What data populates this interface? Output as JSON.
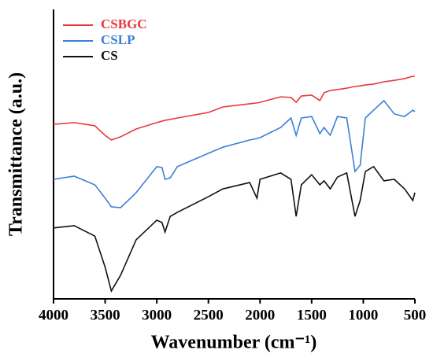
{
  "chart_data": {
    "type": "line",
    "xlabel": "Wavenumber (cm⁻¹)",
    "ylabel": "Transmittance (a.u.)",
    "x": [
      4000,
      3800,
      3600,
      3500,
      3440,
      3350,
      3200,
      3000,
      2950,
      2920,
      2870,
      2800,
      2500,
      2360,
      2100,
      2030,
      2000,
      1800,
      1700,
      1650,
      1600,
      1500,
      1420,
      1380,
      1320,
      1250,
      1160,
      1080,
      1030,
      980,
      900,
      800,
      700,
      600,
      520,
      500
    ],
    "series": [
      {
        "name": "CSBGC",
        "color": "#e8393a",
        "values": [
          60.3,
          60.9,
          59.8,
          56.5,
          54.9,
          56.0,
          58.7,
          60.9,
          61.4,
          61.7,
          62.0,
          62.5,
          64.4,
          66.3,
          67.4,
          67.7,
          67.9,
          69.8,
          69.6,
          67.9,
          70.1,
          70.4,
          68.5,
          71.2,
          72.0,
          72.3,
          72.8,
          73.4,
          73.6,
          73.9,
          74.2,
          75.0,
          75.5,
          76.1,
          76.9,
          76.9
        ]
      },
      {
        "name": "CSLP",
        "color": "#3b7fd8",
        "values": [
          41.3,
          42.4,
          39.4,
          34.8,
          31.8,
          31.5,
          36.7,
          45.7,
          45.4,
          41.3,
          41.8,
          45.7,
          50.3,
          52.4,
          54.9,
          55.4,
          55.7,
          59.2,
          62.5,
          56.5,
          62.5,
          63.0,
          57.1,
          59.2,
          56.5,
          63.0,
          62.5,
          44.0,
          46.2,
          62.5,
          65.2,
          68.5,
          63.9,
          63.0,
          65.2,
          64.7
        ]
      },
      {
        "name": "CS",
        "color": "#111111",
        "values": [
          24.5,
          25.3,
          21.7,
          10.9,
          2.7,
          8.2,
          20.4,
          27.2,
          26.4,
          23.1,
          28.5,
          29.9,
          35.3,
          38.0,
          40.2,
          34.8,
          41.3,
          43.5,
          41.3,
          28.5,
          39.4,
          42.9,
          39.4,
          40.8,
          38.0,
          42.1,
          43.5,
          28.5,
          34.0,
          44.0,
          45.7,
          40.8,
          41.3,
          38.0,
          34.0,
          36.7
        ]
      }
    ],
    "xlim": [
      4000,
      500
    ],
    "xticks": [
      4000,
      3500,
      3000,
      2500,
      2000,
      1500,
      1000,
      500
    ],
    "ylim": [
      0,
      100
    ],
    "legend": "upper left"
  }
}
